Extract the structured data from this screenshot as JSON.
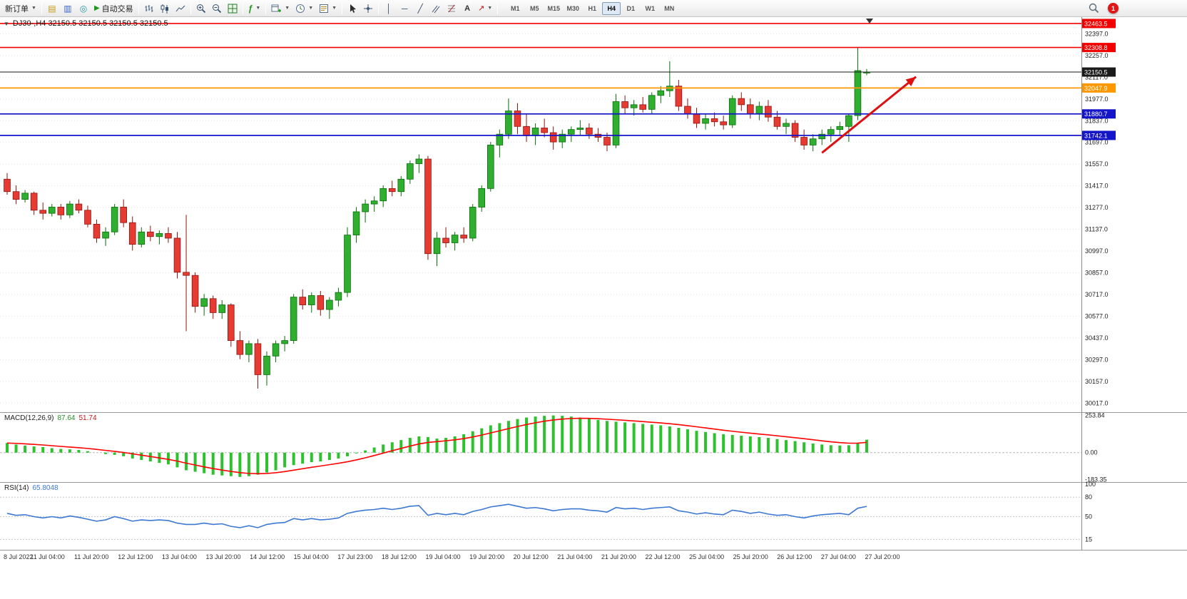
{
  "toolbar": {
    "new_order": {
      "label": "新订单"
    },
    "auto_trading": {
      "label": "自动交易"
    },
    "timeframes": {
      "items": [
        "M1",
        "M5",
        "M15",
        "M30",
        "H1",
        "H4",
        "D1",
        "W1",
        "MN"
      ],
      "active": "H4"
    },
    "notification_count": "1"
  },
  "chart": {
    "title": "DJ30-,H4  32150.5 32150.5 32150.5 32150.5",
    "symbol": "DJ30-",
    "period": "H4",
    "current_price": 32150.5
  },
  "chart_data": [
    {
      "type": "candlestick",
      "id": "main",
      "symbol": "DJ30-",
      "timeframe": "H4",
      "ohlc_display": [
        32150.5,
        32150.5,
        32150.5,
        32150.5
      ],
      "y_axis": {
        "max": 32500,
        "min": 29963,
        "ticks": [
          32397.0,
          32257.0,
          32117.0,
          31977.0,
          31837.0,
          31697.0,
          31557.0,
          31417.0,
          31277.0,
          31137.0,
          30997.0,
          30857.0,
          30717.0,
          30577.0,
          30437.0,
          30297.0,
          30157.0,
          30017.0
        ]
      },
      "price_lines": [
        {
          "price": 32463.5,
          "color": "#f20000",
          "width": 1.6,
          "role": "resistance-line"
        },
        {
          "price": 32308.8,
          "color": "#f20000",
          "width": 1.6,
          "role": "resistance-line"
        },
        {
          "price": 32150.5,
          "color": "#1a1a1a",
          "width": 1.0,
          "role": "current-price-line"
        },
        {
          "price": 32047.9,
          "color": "#ff9800",
          "width": 1.8,
          "role": "pivot-line"
        },
        {
          "price": 31880.7,
          "color": "#1414c8",
          "width": 1.8,
          "role": "support-line"
        },
        {
          "price": 31742.1,
          "color": "#1414c8",
          "width": 1.8,
          "role": "support-line"
        }
      ],
      "colors": {
        "up": "#2fae2f",
        "up_border": "#0a6e0a",
        "down": "#e63b32",
        "down_border": "#8f1410"
      },
      "arrow": {
        "from": {
          "candle": 91,
          "price": 31630
        },
        "to": {
          "candle": 101.5,
          "price": 32120
        },
        "color": "#dd1111"
      },
      "candles": [
        [
          31460,
          31500,
          31360,
          31380
        ],
        [
          31380,
          31420,
          31300,
          31330
        ],
        [
          31330,
          31390,
          31310,
          31370
        ],
        [
          31370,
          31380,
          31230,
          31260
        ],
        [
          31260,
          31310,
          31200,
          31240
        ],
        [
          31240,
          31300,
          31220,
          31280
        ],
        [
          31280,
          31300,
          31200,
          31230
        ],
        [
          31230,
          31320,
          31210,
          31300
        ],
        [
          31300,
          31330,
          31240,
          31260
        ],
        [
          31260,
          31290,
          31150,
          31170
        ],
        [
          31170,
          31200,
          31050,
          31080
        ],
        [
          31080,
          31150,
          31030,
          31120
        ],
        [
          31120,
          31300,
          31100,
          31280
        ],
        [
          31280,
          31330,
          31150,
          31180
        ],
        [
          31180,
          31220,
          31000,
          31040
        ],
        [
          31040,
          31150,
          31020,
          31120
        ],
        [
          31120,
          31160,
          31060,
          31090
        ],
        [
          31090,
          31130,
          31040,
          31110
        ],
        [
          31110,
          31150,
          31050,
          31080
        ],
        [
          31080,
          31120,
          30820,
          30860
        ],
        [
          30860,
          31230,
          30480,
          30840
        ],
        [
          30840,
          30860,
          30600,
          30640
        ],
        [
          30640,
          30720,
          30580,
          30690
        ],
        [
          30690,
          30710,
          30560,
          30600
        ],
        [
          30600,
          30680,
          30560,
          30650
        ],
        [
          30650,
          30660,
          30380,
          30420
        ],
        [
          30420,
          30480,
          30300,
          30330
        ],
        [
          30330,
          30420,
          30280,
          30400
        ],
        [
          30400,
          30430,
          30110,
          30200
        ],
        [
          30200,
          30350,
          30130,
          30320
        ],
        [
          30320,
          30420,
          30280,
          30400
        ],
        [
          30400,
          30450,
          30350,
          30420
        ],
        [
          30420,
          30720,
          30400,
          30700
        ],
        [
          30700,
          30750,
          30620,
          30650
        ],
        [
          30650,
          30730,
          30600,
          30710
        ],
        [
          30710,
          30740,
          30580,
          30620
        ],
        [
          30620,
          30700,
          30560,
          30680
        ],
        [
          30680,
          30760,
          30640,
          30730
        ],
        [
          30730,
          31150,
          30700,
          31100
        ],
        [
          31100,
          31280,
          31050,
          31250
        ],
        [
          31250,
          31330,
          31180,
          31300
        ],
        [
          31300,
          31350,
          31250,
          31320
        ],
        [
          31320,
          31420,
          31280,
          31400
        ],
        [
          31400,
          31450,
          31350,
          31380
        ],
        [
          31380,
          31480,
          31350,
          31460
        ],
        [
          31460,
          31580,
          31430,
          31560
        ],
        [
          31560,
          31620,
          31500,
          31590
        ],
        [
          31590,
          31610,
          30940,
          30980
        ],
        [
          30980,
          31120,
          30900,
          31080
        ],
        [
          31080,
          31150,
          31020,
          31050
        ],
        [
          31050,
          31120,
          31000,
          31100
        ],
        [
          31100,
          31150,
          31050,
          31080
        ],
        [
          31080,
          31300,
          31060,
          31280
        ],
        [
          31280,
          31420,
          31250,
          31400
        ],
        [
          31400,
          31700,
          31380,
          31680
        ],
        [
          31680,
          31780,
          31600,
          31750
        ],
        [
          31750,
          31980,
          31720,
          31900
        ],
        [
          31900,
          31950,
          31750,
          31800
        ],
        [
          31800,
          31880,
          31700,
          31740
        ],
        [
          31740,
          31820,
          31680,
          31790
        ],
        [
          31790,
          31850,
          31730,
          31760
        ],
        [
          31760,
          31800,
          31650,
          31700
        ],
        [
          31700,
          31780,
          31660,
          31750
        ],
        [
          31750,
          31800,
          31700,
          31780
        ],
        [
          31780,
          31840,
          31740,
          31790
        ],
        [
          31790,
          31820,
          31720,
          31750
        ],
        [
          31750,
          31790,
          31700,
          31730
        ],
        [
          31730,
          31760,
          31640,
          31680
        ],
        [
          31680,
          32010,
          31660,
          31960
        ],
        [
          31960,
          32000,
          31880,
          31920
        ],
        [
          31920,
          31970,
          31870,
          31940
        ],
        [
          31940,
          31990,
          31890,
          31910
        ],
        [
          31910,
          32020,
          31880,
          32000
        ],
        [
          32000,
          32060,
          31950,
          32030
        ],
        [
          32030,
          32220,
          31990,
          32060
        ],
        [
          32060,
          32100,
          31900,
          31930
        ],
        [
          31930,
          31980,
          31850,
          31880
        ],
        [
          31880,
          31920,
          31790,
          31820
        ],
        [
          31820,
          31880,
          31780,
          31850
        ],
        [
          31850,
          31890,
          31800,
          31830
        ],
        [
          31830,
          31870,
          31780,
          31810
        ],
        [
          31810,
          32000,
          31790,
          31980
        ],
        [
          31980,
          32020,
          31900,
          31940
        ],
        [
          31940,
          31980,
          31850,
          31880
        ],
        [
          31880,
          31960,
          31840,
          31930
        ],
        [
          31930,
          31970,
          31830,
          31860
        ],
        [
          31860,
          31900,
          31780,
          31800
        ],
        [
          31800,
          31850,
          31750,
          31820
        ],
        [
          31820,
          31840,
          31700,
          31730
        ],
        [
          31730,
          31780,
          31650,
          31680
        ],
        [
          31680,
          31750,
          31640,
          31720
        ],
        [
          31720,
          31780,
          31680,
          31750
        ],
        [
          31750,
          31800,
          31700,
          31780
        ],
        [
          31780,
          31830,
          31740,
          31800
        ],
        [
          31800,
          31880,
          31700,
          31870
        ],
        [
          31870,
          32310,
          31840,
          32160
        ],
        [
          32150,
          32170,
          32130,
          32150.5
        ]
      ],
      "x_labels": [
        "8 Jul 2022",
        "11 Jul 04:00",
        "11 Jul 20:00",
        "12 Jul 12:00",
        "13 Jul 04:00",
        "13 Jul 20:00",
        "14 Jul 12:00",
        "15 Jul 04:00",
        "17 Jul 23:00",
        "18 Jul 12:00",
        "19 Jul 04:00",
        "19 Jul 20:00",
        "20 Jul 12:00",
        "21 Jul 04:00",
        "21 Jul 20:00",
        "22 Jul 12:00",
        "25 Jul 04:00",
        "25 Jul 20:00",
        "26 Jul 12:00",
        "27 Jul 04:00",
        "27 Jul 20:00"
      ]
    },
    {
      "type": "macd-histogram",
      "id": "macd",
      "label": "MACD(12,26,9)",
      "value_main": "87.64",
      "value_signal": "51.74",
      "y_axis": {
        "max": 260,
        "min": -195
      },
      "y_ticks": [
        253.84,
        0.0,
        -183.35
      ],
      "colors": {
        "histogram": "#2ec12e",
        "signal": "#ff0000"
      },
      "histogram": [
        65,
        55,
        48,
        42,
        38,
        30,
        25,
        22,
        18,
        10,
        0,
        -10,
        -15,
        -25,
        -40,
        -50,
        -60,
        -70,
        -80,
        -100,
        -120,
        -130,
        -140,
        -150,
        -155,
        -160,
        -165,
        -160,
        -150,
        -135,
        -120,
        -100,
        -85,
        -75,
        -65,
        -60,
        -50,
        -40,
        -25,
        -5,
        15,
        35,
        55,
        70,
        85,
        100,
        110,
        105,
        95,
        100,
        110,
        125,
        145,
        165,
        185,
        200,
        215,
        228,
        238,
        245,
        250,
        252,
        250,
        245,
        238,
        230,
        222,
        215,
        210,
        205,
        200,
        195,
        190,
        185,
        178,
        168,
        158,
        148,
        140,
        132,
        125,
        120,
        115,
        110,
        105,
        100,
        92,
        85,
        78,
        70,
        62,
        55,
        50,
        48,
        50,
        65,
        87.64
      ]
    },
    {
      "type": "line",
      "id": "rsi",
      "label": "RSI(14)",
      "value_display": "65.8048",
      "color": "#3c78d2",
      "levels": [
        80,
        50,
        15
      ],
      "y_ticks": [
        100,
        80,
        50,
        15
      ],
      "values": [
        55,
        52,
        53,
        50,
        48,
        50,
        48,
        51,
        49,
        46,
        43,
        45,
        50,
        47,
        43,
        45,
        44,
        45,
        44,
        40,
        38,
        38,
        40,
        38,
        39,
        35,
        33,
        36,
        33,
        38,
        40,
        41,
        47,
        45,
        47,
        45,
        46,
        48,
        55,
        58,
        60,
        61,
        63,
        61,
        63,
        66,
        67,
        52,
        55,
        53,
        55,
        53,
        58,
        61,
        65,
        67,
        69,
        66,
        63,
        64,
        62,
        59,
        61,
        62,
        62,
        60,
        59,
        57,
        64,
        62,
        63,
        61,
        63,
        64,
        65,
        59,
        57,
        54,
        56,
        54,
        53,
        60,
        58,
        55,
        57,
        54,
        52,
        53,
        50,
        48,
        51,
        53,
        54,
        55,
        53,
        63,
        65.8
      ]
    }
  ]
}
